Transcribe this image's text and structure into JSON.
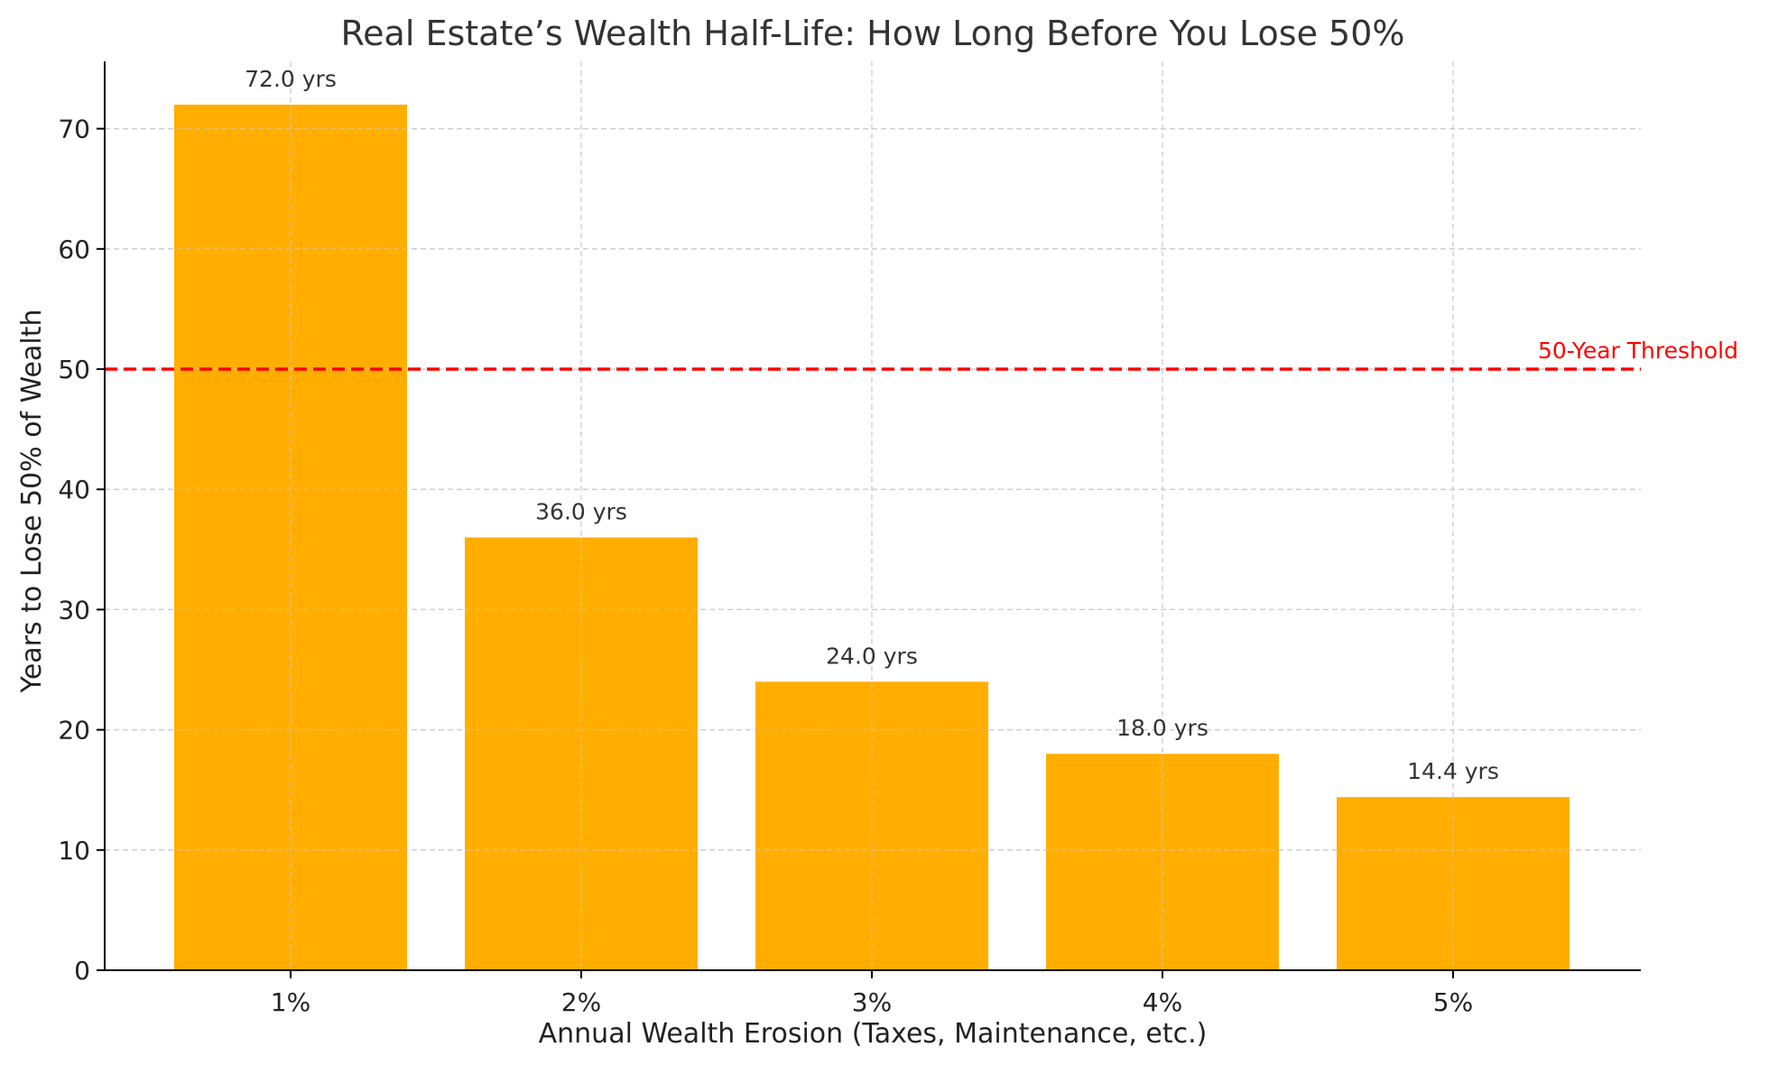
{
  "chart_data": {
    "type": "bar",
    "title": "Real Estate’s Wealth Half-Life: How Long Before You Lose 50%",
    "xlabel": "Annual Wealth Erosion (Taxes, Maintenance, etc.)",
    "ylabel": "Years to Lose 50% of Wealth",
    "categories": [
      "1%",
      "2%",
      "3%",
      "4%",
      "5%"
    ],
    "values": [
      72.0,
      36.0,
      24.0,
      18.0,
      14.4
    ],
    "data_labels": [
      "72.0 yrs",
      "36.0 yrs",
      "24.0 yrs",
      "18.0 yrs",
      "14.4 yrs"
    ],
    "ylim": [
      0,
      75.6
    ],
    "yticks": [
      0,
      10,
      20,
      30,
      40,
      50,
      60,
      70
    ],
    "grid": true,
    "bar_color": "#FFAE00",
    "reference_line": {
      "value": 50,
      "label": "50-Year Threshold",
      "color": "#FF0000",
      "style": "dashed"
    }
  }
}
